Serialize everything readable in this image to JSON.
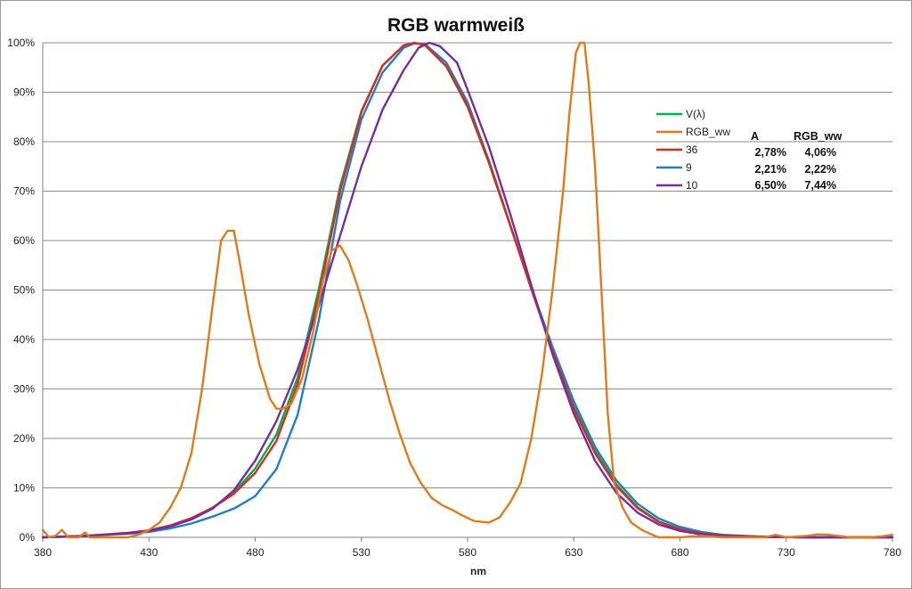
{
  "chart_data": {
    "type": "line",
    "title": "RGB warmweiß",
    "xlabel": "nm",
    "ylabel": "",
    "xlim": [
      380,
      780
    ],
    "ylim": [
      0,
      100
    ],
    "x_ticks": [
      "380",
      "430",
      "480",
      "530",
      "580",
      "630",
      "680",
      "730",
      "780"
    ],
    "y_ticks": [
      "0%",
      "10%",
      "20%",
      "30%",
      "40%",
      "50%",
      "60%",
      "70%",
      "80%",
      "90%",
      "100%"
    ],
    "grid": "horizontal",
    "legend_position": "right",
    "series": [
      {
        "name": "V(λ)",
        "color": "#00b050",
        "points": [
          [
            380,
            0
          ],
          [
            400,
            0.2
          ],
          [
            420,
            0.8
          ],
          [
            430,
            1.2
          ],
          [
            440,
            2.3
          ],
          [
            450,
            3.8
          ],
          [
            460,
            6
          ],
          [
            470,
            9.1
          ],
          [
            480,
            13.9
          ],
          [
            490,
            20.8
          ],
          [
            500,
            32.3
          ],
          [
            510,
            50.3
          ],
          [
            520,
            71
          ],
          [
            530,
            86.2
          ],
          [
            540,
            95.4
          ],
          [
            550,
            99.5
          ],
          [
            555,
            100
          ],
          [
            560,
            99.5
          ],
          [
            570,
            95.2
          ],
          [
            580,
            87
          ],
          [
            590,
            75.7
          ],
          [
            600,
            63.1
          ],
          [
            610,
            50.3
          ],
          [
            620,
            38.1
          ],
          [
            630,
            26.5
          ],
          [
            640,
            17.5
          ],
          [
            650,
            10.7
          ],
          [
            660,
            6.1
          ],
          [
            670,
            3.2
          ],
          [
            680,
            1.7
          ],
          [
            690,
            0.8
          ],
          [
            700,
            0.4
          ],
          [
            720,
            0.1
          ],
          [
            740,
            0
          ],
          [
            780,
            0
          ]
        ]
      },
      {
        "name": "RGB_ww",
        "color": "#e07b1a",
        "points": [
          [
            380,
            1.5
          ],
          [
            383,
            0
          ],
          [
            386,
            0.3
          ],
          [
            389,
            1.5
          ],
          [
            392,
            0
          ],
          [
            397,
            0
          ],
          [
            400,
            1
          ],
          [
            402,
            0
          ],
          [
            410,
            0
          ],
          [
            420,
            0
          ],
          [
            425,
            0.5
          ],
          [
            430,
            1.5
          ],
          [
            435,
            3
          ],
          [
            440,
            6
          ],
          [
            445,
            10
          ],
          [
            450,
            17
          ],
          [
            455,
            30
          ],
          [
            460,
            47
          ],
          [
            464,
            60
          ],
          [
            467,
            62
          ],
          [
            470,
            62
          ],
          [
            473,
            55
          ],
          [
            477,
            45
          ],
          [
            482,
            35
          ],
          [
            487,
            28
          ],
          [
            490,
            26
          ],
          [
            493,
            26
          ],
          [
            497,
            27
          ],
          [
            502,
            32
          ],
          [
            507,
            41
          ],
          [
            512,
            52
          ],
          [
            516,
            58
          ],
          [
            520,
            59
          ],
          [
            524,
            56
          ],
          [
            528,
            51
          ],
          [
            533,
            44
          ],
          [
            538,
            36
          ],
          [
            543,
            28
          ],
          [
            548,
            21
          ],
          [
            553,
            15
          ],
          [
            558,
            11
          ],
          [
            563,
            8
          ],
          [
            568,
            6.5
          ],
          [
            573,
            5.5
          ],
          [
            578,
            4.3
          ],
          [
            583,
            3.3
          ],
          [
            590,
            3
          ],
          [
            595,
            4
          ],
          [
            600,
            7
          ],
          [
            605,
            11
          ],
          [
            610,
            20
          ],
          [
            615,
            33
          ],
          [
            620,
            50
          ],
          [
            625,
            70
          ],
          [
            628,
            86
          ],
          [
            631,
            98
          ],
          [
            633,
            100
          ],
          [
            635,
            100
          ],
          [
            637,
            92
          ],
          [
            640,
            75
          ],
          [
            643,
            50
          ],
          [
            646,
            25
          ],
          [
            649,
            11
          ],
          [
            653,
            6
          ],
          [
            657,
            3
          ],
          [
            662,
            1.5
          ],
          [
            667,
            0.5
          ],
          [
            670,
            0
          ],
          [
            680,
            0
          ],
          [
            690,
            0.3
          ],
          [
            700,
            0
          ],
          [
            710,
            0
          ],
          [
            720,
            0
          ],
          [
            725,
            0.5
          ],
          [
            730,
            0
          ],
          [
            740,
            0.3
          ],
          [
            745,
            0.6
          ],
          [
            750,
            0.5
          ],
          [
            760,
            0
          ],
          [
            770,
            0
          ],
          [
            775,
            0.2
          ],
          [
            780,
            0.5
          ]
        ]
      },
      {
        "name": "36",
        "color": "#d92b22",
        "points": [
          [
            380,
            0
          ],
          [
            400,
            0.3
          ],
          [
            420,
            0.9
          ],
          [
            430,
            1.4
          ],
          [
            440,
            2.4
          ],
          [
            450,
            3.9
          ],
          [
            460,
            6
          ],
          [
            470,
            8.8
          ],
          [
            480,
            13
          ],
          [
            490,
            19.5
          ],
          [
            500,
            31
          ],
          [
            510,
            49
          ],
          [
            520,
            70
          ],
          [
            530,
            86
          ],
          [
            540,
            95.4
          ],
          [
            550,
            99.5
          ],
          [
            555,
            100
          ],
          [
            560,
            99.5
          ],
          [
            570,
            95.3
          ],
          [
            580,
            87.2
          ],
          [
            590,
            76
          ],
          [
            600,
            63.3
          ],
          [
            610,
            50.2
          ],
          [
            620,
            37.6
          ],
          [
            630,
            26
          ],
          [
            640,
            17
          ],
          [
            650,
            10.4
          ],
          [
            660,
            5.9
          ],
          [
            670,
            3.1
          ],
          [
            680,
            1.6
          ],
          [
            690,
            0.8
          ],
          [
            700,
            0.4
          ],
          [
            720,
            0.1
          ],
          [
            740,
            0
          ],
          [
            780,
            0
          ]
        ]
      },
      {
        "name": "9",
        "color": "#1f7fc0",
        "points": [
          [
            380,
            0
          ],
          [
            400,
            0.3
          ],
          [
            420,
            0.7
          ],
          [
            430,
            1.1
          ],
          [
            440,
            1.8
          ],
          [
            450,
            2.8
          ],
          [
            460,
            4.2
          ],
          [
            470,
            5.8
          ],
          [
            480,
            8.3
          ],
          [
            490,
            13.8
          ],
          [
            500,
            24.8
          ],
          [
            510,
            44
          ],
          [
            520,
            68
          ],
          [
            530,
            84.5
          ],
          [
            540,
            94
          ],
          [
            550,
            99
          ],
          [
            555,
            99.9
          ],
          [
            560,
            99.7
          ],
          [
            570,
            96
          ],
          [
            580,
            88
          ],
          [
            590,
            76.2
          ],
          [
            600,
            63.3
          ],
          [
            610,
            50.5
          ],
          [
            620,
            38.5
          ],
          [
            630,
            27.5
          ],
          [
            640,
            18.3
          ],
          [
            650,
            11.5
          ],
          [
            660,
            6.8
          ],
          [
            670,
            3.8
          ],
          [
            680,
            2.1
          ],
          [
            690,
            1.1
          ],
          [
            700,
            0.5
          ],
          [
            720,
            0.1
          ],
          [
            740,
            0
          ],
          [
            780,
            0
          ]
        ]
      },
      {
        "name": "10",
        "color": "#7030a0",
        "points": [
          [
            380,
            0
          ],
          [
            400,
            0.3
          ],
          [
            420,
            0.8
          ],
          [
            430,
            1.3
          ],
          [
            440,
            2.2
          ],
          [
            450,
            3.6
          ],
          [
            460,
            5.8
          ],
          [
            470,
            9.5
          ],
          [
            480,
            15.5
          ],
          [
            490,
            23.5
          ],
          [
            500,
            34
          ],
          [
            510,
            47
          ],
          [
            520,
            61
          ],
          [
            530,
            75
          ],
          [
            540,
            86.5
          ],
          [
            550,
            94.5
          ],
          [
            557,
            99
          ],
          [
            562,
            100
          ],
          [
            567,
            99.3
          ],
          [
            575,
            96
          ],
          [
            580,
            90.5
          ],
          [
            590,
            79
          ],
          [
            600,
            65.5
          ],
          [
            610,
            51
          ],
          [
            620,
            37
          ],
          [
            630,
            25
          ],
          [
            640,
            15.5
          ],
          [
            650,
            9
          ],
          [
            660,
            5
          ],
          [
            670,
            2.6
          ],
          [
            680,
            1.3
          ],
          [
            690,
            0.6
          ],
          [
            700,
            0.3
          ],
          [
            720,
            0.05
          ],
          [
            740,
            0
          ],
          [
            780,
            0
          ]
        ]
      }
    ],
    "table": {
      "header": [
        "A",
        "RGB_ww"
      ],
      "rows": [
        {
          "series": "36",
          "A": "2,78%",
          "RGB_ww": "4,06%"
        },
        {
          "series": "9",
          "A": "2,21%",
          "RGB_ww": "2,22%"
        },
        {
          "series": "10",
          "A": "6,50%",
          "RGB_ww": "7,44%"
        }
      ]
    }
  }
}
